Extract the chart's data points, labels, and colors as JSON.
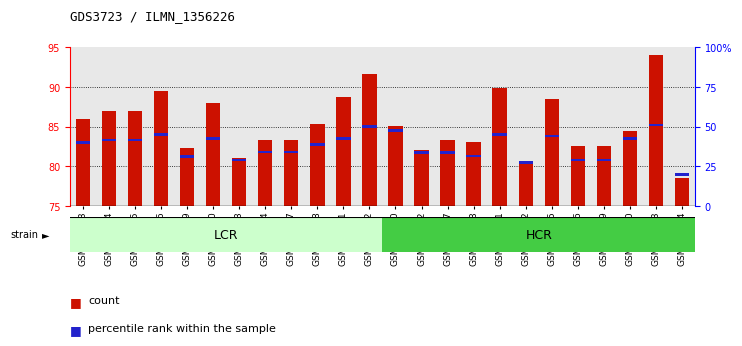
{
  "title": "GDS3723 / ILMN_1356226",
  "samples": [
    "GSM429923",
    "GSM429924",
    "GSM429925",
    "GSM429926",
    "GSM429929",
    "GSM429930",
    "GSM429933",
    "GSM429934",
    "GSM429937",
    "GSM429938",
    "GSM429941",
    "GSM429942",
    "GSM429920",
    "GSM429922",
    "GSM429927",
    "GSM429928",
    "GSM429931",
    "GSM429932",
    "GSM429935",
    "GSM429936",
    "GSM429939",
    "GSM429940",
    "GSM429943",
    "GSM429944"
  ],
  "red_values": [
    86.0,
    87.0,
    87.0,
    89.5,
    82.3,
    88.0,
    81.1,
    83.3,
    83.3,
    85.3,
    88.7,
    91.6,
    85.1,
    82.0,
    83.3,
    83.0,
    89.8,
    80.5,
    88.5,
    82.5,
    82.5,
    84.5,
    94.0,
    78.5
  ],
  "blue_values": [
    83.0,
    83.3,
    83.3,
    84.0,
    81.2,
    83.5,
    80.8,
    81.8,
    81.8,
    82.7,
    83.5,
    85.0,
    84.5,
    81.7,
    81.7,
    81.3,
    84.0,
    80.5,
    83.8,
    80.8,
    80.8,
    83.5,
    85.2,
    79.0
  ],
  "lcr_count": 12,
  "hcr_count": 12,
  "ylim_left": [
    75,
    95
  ],
  "ylim_right": [
    0,
    100
  ],
  "yticks_left": [
    75,
    80,
    85,
    90,
    95
  ],
  "yticks_right": [
    0,
    25,
    50,
    75,
    100
  ],
  "bar_color": "#CC1100",
  "blue_color": "#2222CC",
  "lcr_color": "#CCFFCC",
  "hcr_color": "#44CC44",
  "bar_width": 0.55,
  "baseline": 75,
  "bg_color": "#DDDDDD",
  "grid_color": "#000000",
  "title_fontsize": 9,
  "tick_fontsize": 7,
  "legend_fontsize": 8
}
